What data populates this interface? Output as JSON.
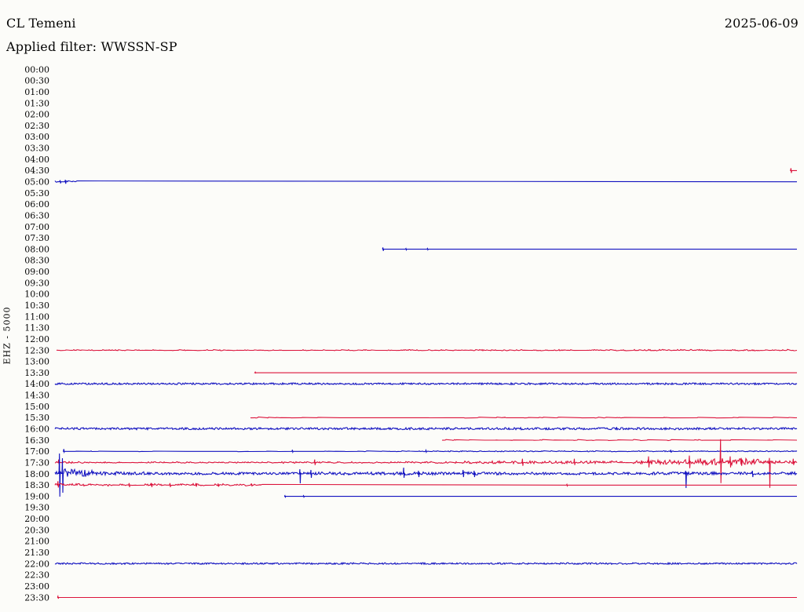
{
  "header": {
    "station": "CL Temeni",
    "date": "2025-06-09",
    "filter_label": "Applied filter: WWSSN-SP"
  },
  "y_axis_label": "EHZ - 5000",
  "colors": {
    "trace_blue": "#1212c0",
    "trace_red": "#dc143c",
    "text": "#050505",
    "background": "#fcfcf9"
  },
  "chart_data": {
    "type": "line",
    "subtype": "helicorder-dayplot",
    "title": "CL Temeni",
    "station": "CL Temeni",
    "channel_scale": "EHZ - 5000",
    "date": "2025-06-09",
    "filter": "WWSSN-SP",
    "minutes_per_row": 30,
    "rows_total": 48,
    "row_color_pattern": [
      "blue",
      "red"
    ],
    "legend": "each row = 30 min; blue rows start on the hour, red rows on the half hour; segments = [fromFrac,toFrac,amplitudePx,density]; spikes = [atFrac,upPx,downPx]",
    "rows": [
      {
        "label": "00:00",
        "color": "blue",
        "segments": [],
        "spikes": []
      },
      {
        "label": "00:30",
        "color": "red",
        "segments": [],
        "spikes": []
      },
      {
        "label": "01:00",
        "color": "blue",
        "segments": [],
        "spikes": []
      },
      {
        "label": "01:30",
        "color": "red",
        "segments": [],
        "spikes": []
      },
      {
        "label": "02:00",
        "color": "blue",
        "segments": [],
        "spikes": []
      },
      {
        "label": "02:30",
        "color": "red",
        "segments": [],
        "spikes": []
      },
      {
        "label": "03:00",
        "color": "blue",
        "segments": [],
        "spikes": []
      },
      {
        "label": "03:30",
        "color": "red",
        "segments": [],
        "spikes": []
      },
      {
        "label": "04:00",
        "color": "blue",
        "segments": [],
        "spikes": []
      },
      {
        "label": "04:30",
        "color": "red",
        "segments": [],
        "spikes": [
          [
            0.992,
            3,
            3
          ]
        ]
      },
      {
        "label": "05:00",
        "color": "blue",
        "segments": [
          [
            0.0,
            0.03,
            1.2,
            0.45
          ]
        ],
        "spikes": [
          [
            0.007,
            2,
            2
          ],
          [
            0.014,
            2.5,
            2.5
          ]
        ]
      },
      {
        "label": "05:30",
        "color": "red",
        "segments": [],
        "spikes": []
      },
      {
        "label": "06:00",
        "color": "blue",
        "segments": [],
        "spikes": []
      },
      {
        "label": "06:30",
        "color": "red",
        "segments": [],
        "spikes": []
      },
      {
        "label": "07:00",
        "color": "blue",
        "segments": [],
        "spikes": []
      },
      {
        "label": "07:30",
        "color": "red",
        "segments": [],
        "spikes": []
      },
      {
        "label": "08:00",
        "color": "blue",
        "segments": [],
        "spikes": [
          [
            0.442,
            2.2,
            2.2
          ],
          [
            0.473,
            0.9,
            0.9
          ],
          [
            0.502,
            1,
            0.8
          ]
        ]
      },
      {
        "label": "08:30",
        "color": "red",
        "segments": [],
        "spikes": []
      },
      {
        "label": "09:00",
        "color": "blue",
        "segments": [],
        "spikes": []
      },
      {
        "label": "09:30",
        "color": "red",
        "segments": [],
        "spikes": []
      },
      {
        "label": "10:00",
        "color": "blue",
        "segments": [],
        "spikes": []
      },
      {
        "label": "10:30",
        "color": "red",
        "segments": [],
        "spikes": []
      },
      {
        "label": "11:00",
        "color": "blue",
        "segments": [],
        "spikes": []
      },
      {
        "label": "11:30",
        "color": "red",
        "segments": [],
        "spikes": []
      },
      {
        "label": "12:00",
        "color": "blue",
        "segments": [],
        "spikes": []
      },
      {
        "label": "12:30",
        "color": "red",
        "segments": [
          [
            0.0,
            0.45,
            0.8,
            0.25
          ],
          [
            0.45,
            0.8,
            0.9,
            0.35
          ],
          [
            0.8,
            1.0,
            1.1,
            0.45
          ]
        ],
        "spikes": []
      },
      {
        "label": "13:00",
        "color": "blue",
        "segments": [],
        "spikes": []
      },
      {
        "label": "13:30",
        "color": "red",
        "segments": [],
        "spikes": [
          [
            0.27,
            0.9,
            0.3
          ]
        ]
      },
      {
        "label": "14:00",
        "color": "blue",
        "segments": [
          [
            0.0,
            1.0,
            1.35,
            0.93
          ]
        ],
        "spikes": []
      },
      {
        "label": "14:30",
        "color": "red",
        "segments": [],
        "spikes": []
      },
      {
        "label": "15:00",
        "color": "blue",
        "segments": [],
        "spikes": []
      },
      {
        "label": "15:30",
        "color": "red",
        "segments": [
          [
            0.25,
            0.4,
            0.9,
            0.1
          ],
          [
            0.5,
            1.0,
            0.8,
            0.08
          ]
        ],
        "spikes": []
      },
      {
        "label": "16:00",
        "color": "blue",
        "segments": [
          [
            0.0,
            1.0,
            1.6,
            0.93
          ]
        ],
        "spikes": [
          [
            0.757,
            2.5,
            1.5
          ]
        ]
      },
      {
        "label": "16:30",
        "color": "red",
        "segments": [
          [
            0.5,
            0.97,
            0.8,
            0.08
          ]
        ],
        "spikes": []
      },
      {
        "label": "17:00",
        "color": "blue",
        "segments": [
          [
            0.02,
            0.45,
            0.7,
            0.06
          ],
          [
            0.45,
            1.0,
            0.8,
            0.45
          ]
        ],
        "spikes": [
          [
            0.012,
            3,
            1
          ],
          [
            0.32,
            2,
            1
          ],
          [
            0.5,
            1.5,
            1
          ],
          [
            0.83,
            2,
            1.5
          ]
        ]
      },
      {
        "label": "17:30",
        "color": "red",
        "segments": [
          [
            0.0,
            0.04,
            1.4,
            0.55
          ],
          [
            0.04,
            0.3,
            1.0,
            0.4
          ],
          [
            0.3,
            0.55,
            1.4,
            0.5
          ],
          [
            0.55,
            0.78,
            2.0,
            0.65
          ],
          [
            0.78,
            0.86,
            3.5,
            0.85
          ],
          [
            0.86,
            0.95,
            5.0,
            0.9
          ],
          [
            0.95,
            1.0,
            2.2,
            0.8
          ]
        ],
        "spikes": [
          [
            0.005,
            4,
            2
          ],
          [
            0.35,
            4,
            3
          ],
          [
            0.63,
            5,
            4
          ],
          [
            0.7,
            5,
            3
          ],
          [
            0.8,
            8,
            6
          ],
          [
            0.855,
            9,
            7
          ],
          [
            0.897,
            30,
            26
          ],
          [
            0.91,
            8,
            6
          ],
          [
            0.925,
            6,
            4
          ],
          [
            0.963,
            6,
            32
          ],
          [
            0.995,
            5,
            3
          ]
        ]
      },
      {
        "label": "18:00",
        "color": "blue",
        "segments": [
          [
            0.0,
            0.012,
            3,
            0.9
          ],
          [
            0.012,
            0.05,
            6,
            0.95
          ],
          [
            0.05,
            0.12,
            2.6,
            0.95
          ],
          [
            0.12,
            0.35,
            1.8,
            0.9
          ],
          [
            0.35,
            0.6,
            2.2,
            0.9
          ],
          [
            0.6,
            0.8,
            1.8,
            0.9
          ],
          [
            0.8,
            1.0,
            2.2,
            0.9
          ]
        ],
        "spikes": [
          [
            0.006,
            26,
            29
          ],
          [
            0.01,
            20,
            24
          ],
          [
            0.33,
            6,
            12
          ],
          [
            0.345,
            5,
            5
          ],
          [
            0.47,
            8,
            5
          ],
          [
            0.49,
            4,
            4
          ],
          [
            0.55,
            5,
            4
          ],
          [
            0.565,
            4,
            4
          ],
          [
            0.85,
            4,
            18
          ],
          [
            0.94,
            4,
            4
          ]
        ]
      },
      {
        "label": "18:30",
        "color": "red",
        "segments": [
          [
            0.0,
            0.05,
            2.0,
            0.6
          ],
          [
            0.05,
            0.28,
            1.7,
            0.35
          ]
        ],
        "spikes": [
          [
            0.004,
            5,
            3
          ],
          [
            0.1,
            2.5,
            2.5
          ],
          [
            0.13,
            2.5,
            2.5
          ],
          [
            0.155,
            2.5,
            2.5
          ],
          [
            0.19,
            2.5,
            2
          ],
          [
            0.22,
            2,
            2
          ],
          [
            0.265,
            2,
            1.5
          ],
          [
            0.69,
            1,
            1
          ]
        ]
      },
      {
        "label": "19:00",
        "color": "blue",
        "segments": [],
        "spikes": [
          [
            0.31,
            0.9,
            0.9
          ],
          [
            0.335,
            0.9,
            0.9
          ]
        ]
      },
      {
        "label": "19:30",
        "color": "red",
        "segments": [],
        "spikes": []
      },
      {
        "label": "20:00",
        "color": "blue",
        "segments": [],
        "spikes": []
      },
      {
        "label": "20:30",
        "color": "red",
        "segments": [],
        "spikes": []
      },
      {
        "label": "21:00",
        "color": "blue",
        "segments": [],
        "spikes": []
      },
      {
        "label": "21:30",
        "color": "red",
        "segments": [],
        "spikes": []
      },
      {
        "label": "22:00",
        "color": "blue",
        "segments": [
          [
            0.0,
            1.0,
            1.2,
            0.92
          ]
        ],
        "spikes": []
      },
      {
        "label": "22:30",
        "color": "red",
        "segments": [],
        "spikes": []
      },
      {
        "label": "23:00",
        "color": "blue",
        "segments": [],
        "spikes": []
      },
      {
        "label": "23:30",
        "color": "red",
        "segments": [],
        "spikes": [
          [
            0.004,
            1.5,
            1.5
          ]
        ]
      }
    ]
  }
}
